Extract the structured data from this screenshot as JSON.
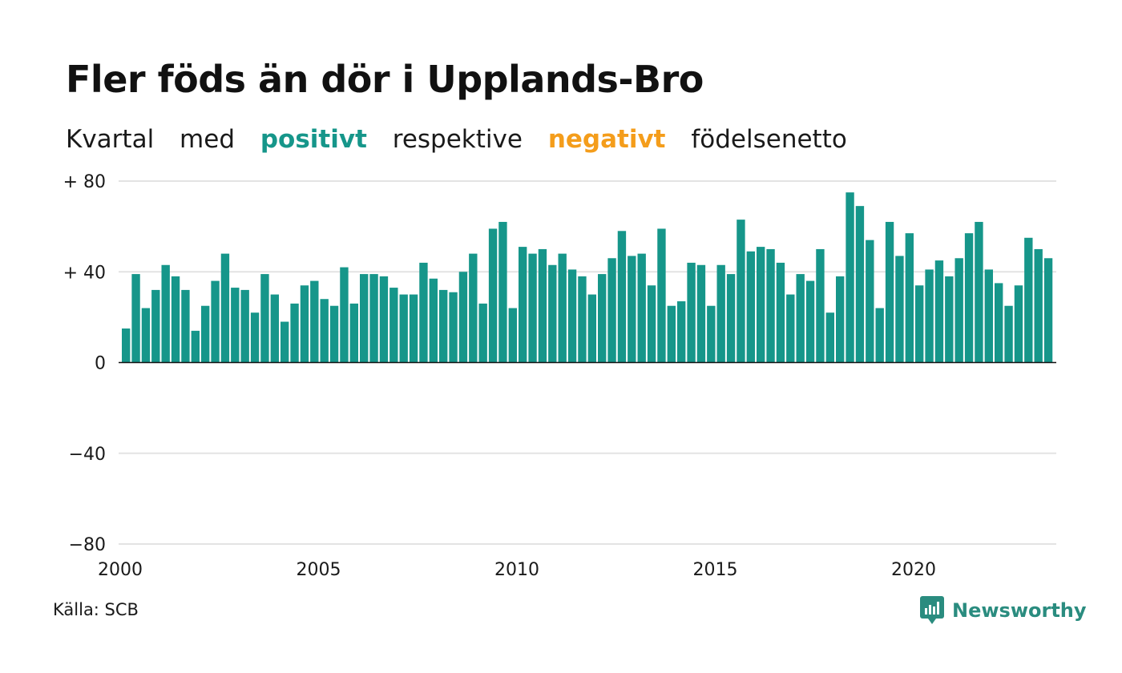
{
  "title": "Fler föds än dör i Upplands-Bro",
  "subtitle": {
    "part1": "Kvartal",
    "part2": "med",
    "positive": "positivt",
    "part3": "respektive",
    "negative": "negativt",
    "part4": "födelsenetto"
  },
  "colors": {
    "positive": "#16968a",
    "negative": "#f49d1b",
    "grid": "#e3e3e3",
    "axis": "#111111"
  },
  "source": "Källa: SCB",
  "brand": {
    "name": "Newsworthy",
    "icon": "newsworthy-logo-icon"
  },
  "chart_data": {
    "type": "bar",
    "title": "Fler föds än dör i Upplands-Bro",
    "xlabel": "",
    "ylabel": "",
    "x_start": 2000,
    "periods_per_year": 4,
    "xlim": [
      2000,
      2023.75
    ],
    "ylim": [
      -80,
      80
    ],
    "y_ticks": [
      80,
      40,
      0,
      -40,
      -80
    ],
    "y_tick_labels": [
      "+ 80",
      "+ 40",
      "0",
      "−40",
      "−80"
    ],
    "x_ticks": [
      2000,
      2005,
      2010,
      2015,
      2020
    ],
    "x_tick_labels": [
      "2000",
      "2005",
      "2010",
      "2015",
      "2020"
    ],
    "grid": true,
    "values": [
      15,
      39,
      24,
      32,
      43,
      38,
      32,
      14,
      25,
      36,
      48,
      33,
      32,
      22,
      39,
      30,
      18,
      26,
      34,
      36,
      28,
      25,
      42,
      26,
      39,
      39,
      38,
      33,
      30,
      30,
      44,
      37,
      32,
      31,
      40,
      48,
      26,
      59,
      62,
      24,
      51,
      48,
      50,
      43,
      48,
      41,
      38,
      30,
      39,
      46,
      58,
      47,
      48,
      34,
      59,
      25,
      27,
      44,
      43,
      25,
      43,
      39,
      63,
      49,
      51,
      50,
      44,
      30,
      39,
      36,
      50,
      22,
      38,
      75,
      69,
      54,
      24,
      62,
      47,
      57,
      34,
      41,
      45,
      38,
      46,
      57,
      62,
      41,
      35,
      25,
      34,
      55,
      50,
      46
    ]
  }
}
